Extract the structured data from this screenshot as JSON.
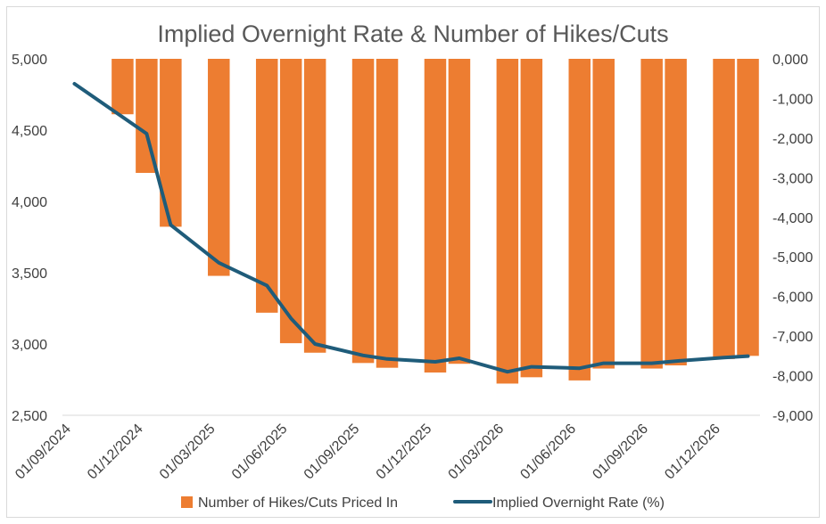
{
  "chart_data": {
    "type": "bar+line",
    "title": "Implied Overnight Rate & Number of Hikes/Cuts",
    "x": [
      "01/09/2024",
      "01/10/2024",
      "01/11/2024",
      "01/12/2024",
      "01/01/2025",
      "01/02/2025",
      "01/03/2025",
      "01/04/2025",
      "01/05/2025",
      "01/06/2025",
      "01/07/2025",
      "01/08/2025",
      "01/09/2025",
      "01/10/2025",
      "01/11/2025",
      "01/12/2025",
      "01/01/2026",
      "01/02/2026",
      "01/03/2026",
      "01/04/2026",
      "01/05/2026",
      "01/06/2026",
      "01/07/2026",
      "01/08/2026",
      "01/09/2026",
      "01/10/2026",
      "01/11/2026",
      "01/12/2026",
      "01/01/2027"
    ],
    "x_tick_labels": [
      "01/09/2024",
      "01/12/2024",
      "01/03/2025",
      "01/06/2025",
      "01/09/2025",
      "01/12/2025",
      "01/03/2026",
      "01/06/2026",
      "01/09/2026",
      "01/12/2026"
    ],
    "left_axis": {
      "min": 2500,
      "max": 5000,
      "ticks": [
        "2,500",
        "3,000",
        "3,500",
        "4,000",
        "4,500",
        "5,000"
      ]
    },
    "right_axis": {
      "min": -9000,
      "max": 0,
      "ticks": [
        "-9,000",
        "-8,000",
        "-7,000",
        "-6,000",
        "-5,000",
        "-4,000",
        "-3,000",
        "-2,000",
        "-1,000",
        "0,000"
      ]
    },
    "series": [
      {
        "name": "Number of Hikes/Cuts Priced In",
        "type": "bar",
        "axis": "right",
        "color": "#ED7D31",
        "values": [
          null,
          null,
          -1400,
          -2880,
          -4240,
          null,
          -5480,
          null,
          -6410,
          -7180,
          -7420,
          null,
          -7680,
          -7800,
          null,
          -7920,
          -7700,
          null,
          -8200,
          -8040,
          null,
          -8120,
          -7820,
          null,
          -7820,
          -7740,
          null,
          -7580,
          -7500
        ]
      },
      {
        "name": "Implied Overnight Rate (%)",
        "type": "line",
        "axis": "left",
        "color": "#1F5C7A",
        "values": [
          4825,
          null,
          null,
          4475,
          3835,
          null,
          3570,
          null,
          3410,
          3180,
          3000,
          null,
          2920,
          2895,
          null,
          2875,
          2900,
          null,
          2805,
          2840,
          null,
          2830,
          2865,
          null,
          2865,
          2880,
          null,
          2905,
          2915
        ]
      }
    ],
    "legend": {
      "position": "bottom"
    },
    "grid": false
  }
}
